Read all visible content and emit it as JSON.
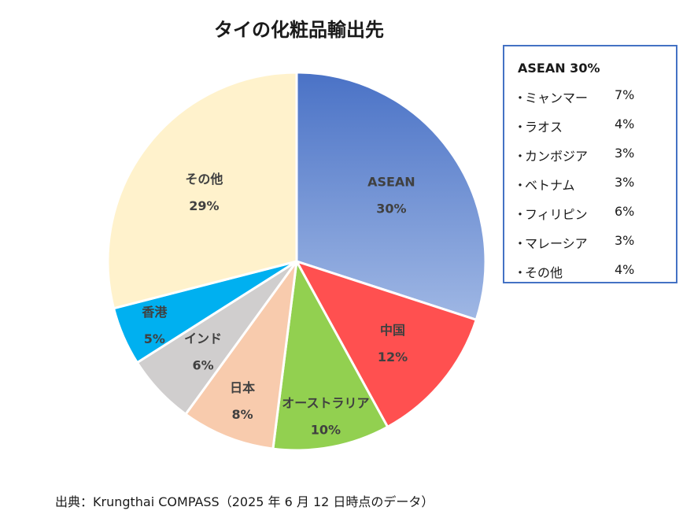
{
  "chart_data": {
    "type": "pie",
    "title": "タイの化粧品輸出先",
    "slices": [
      {
        "name": "ASEAN",
        "label": "30%",
        "value": 30,
        "color": "#5b81cc"
      },
      {
        "name": "中国",
        "label": "12%",
        "value": 12,
        "color": "#ff5050"
      },
      {
        "name": "オーストラリア",
        "label": "10%",
        "value": 10,
        "color": "#92d050"
      },
      {
        "name": "日本",
        "label": "8%",
        "value": 8,
        "color": "#f8cbad"
      },
      {
        "name": "インド",
        "label": "6%",
        "value": 6,
        "color": "#d0cece"
      },
      {
        "name": "香港",
        "label": "5%",
        "value": 5,
        "color": "#00b0f0"
      },
      {
        "name": "その他",
        "label": "29%",
        "value": 29,
        "color": "#fff2cc"
      }
    ]
  },
  "breakdown": {
    "heading": "ASEAN 30%",
    "bullet": "・",
    "items": [
      {
        "name": "ミャンマー",
        "pct": "7%"
      },
      {
        "name": "ラオス",
        "pct": "4%"
      },
      {
        "name": "カンボジア",
        "pct": "3%"
      },
      {
        "name": "ベトナム",
        "pct": "3%"
      },
      {
        "name": "フィリピン",
        "pct": "6%"
      },
      {
        "name": "マレーシア",
        "pct": "3%"
      },
      {
        "name": "その他",
        "pct": "4%"
      }
    ]
  },
  "source": "出典：Krungthai COMPASS（2025 年 6 月 12 日時点のデータ）"
}
